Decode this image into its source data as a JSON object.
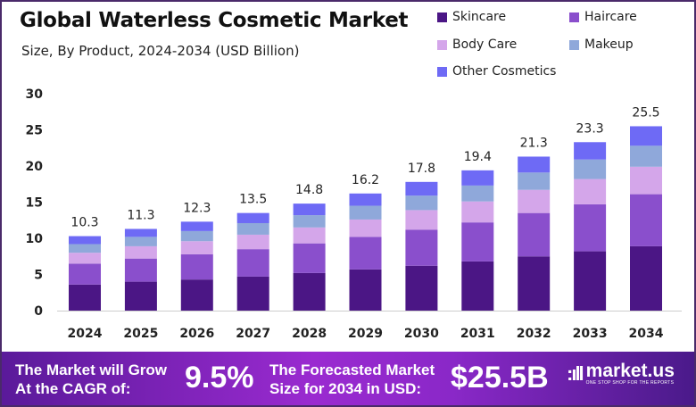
{
  "chart_data": {
    "type": "bar",
    "stacked": true,
    "title": "Global Waterless Cosmetic Market",
    "subtitle": "Size, By Product, 2024-2034 (USD Billion)",
    "xlabel": "",
    "ylabel": "",
    "ylim": [
      0,
      30
    ],
    "yticks": [
      0,
      5,
      10,
      15,
      20,
      25,
      30
    ],
    "grid": false,
    "legend_position": "top-right",
    "categories": [
      "2024",
      "2025",
      "2026",
      "2027",
      "2028",
      "2029",
      "2030",
      "2031",
      "2032",
      "2033",
      "2034"
    ],
    "totals": [
      "10.3",
      "11.3",
      "12.3",
      "13.5",
      "14.8",
      "16.2",
      "17.8",
      "19.4",
      "21.3",
      "23.3",
      "25.5"
    ],
    "series": [
      {
        "name": "Skincare",
        "color": "#4b1685",
        "values": [
          3.6,
          4.0,
          4.3,
          4.7,
          5.2,
          5.7,
          6.2,
          6.8,
          7.5,
          8.2,
          8.9
        ]
      },
      {
        "name": "Haircare",
        "color": "#8a4fcc",
        "values": [
          2.9,
          3.2,
          3.5,
          3.8,
          4.1,
          4.5,
          5.0,
          5.4,
          6.0,
          6.5,
          7.2
        ]
      },
      {
        "name": "Body Care",
        "color": "#d4a6ea",
        "values": [
          1.5,
          1.7,
          1.8,
          2.0,
          2.2,
          2.4,
          2.7,
          2.9,
          3.2,
          3.5,
          3.8
        ]
      },
      {
        "name": "Makeup",
        "color": "#8fa8da",
        "values": [
          1.2,
          1.3,
          1.4,
          1.6,
          1.7,
          1.9,
          2.0,
          2.2,
          2.4,
          2.7,
          2.9
        ]
      },
      {
        "name": "Other Cosmetics",
        "color": "#6e6af5",
        "values": [
          1.1,
          1.1,
          1.3,
          1.4,
          1.6,
          1.7,
          1.9,
          2.1,
          2.2,
          2.4,
          2.7
        ]
      }
    ]
  },
  "footer": {
    "cagr_label": "The Market will Grow At the CAGR of:",
    "cagr_value": "9.5%",
    "forecast_label": "The Forecasted Market Size for 2034 in USD:",
    "forecast_value": "$25.5B",
    "brand": "market.us",
    "tagline": "ONE STOP SHOP FOR THE REPORTS"
  }
}
